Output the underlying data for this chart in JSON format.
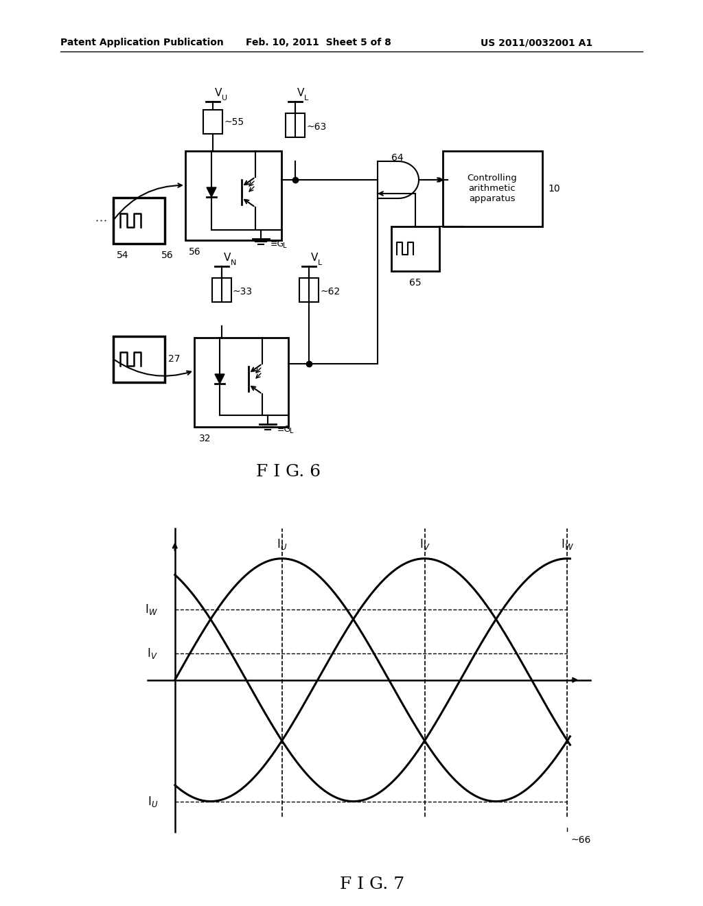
{
  "bg_color": "#ffffff",
  "header_left": "Patent Application Publication",
  "header_center": "Feb. 10, 2011  Sheet 5 of 8",
  "header_right": "US 2011/0032001 A1",
  "fig6_label": "F I G. 6",
  "fig7_label": "F I G. 7",
  "fig7_iW_level": 0.55,
  "fig7_iV_level": 0.22,
  "fig7_iU_level": -1.0
}
